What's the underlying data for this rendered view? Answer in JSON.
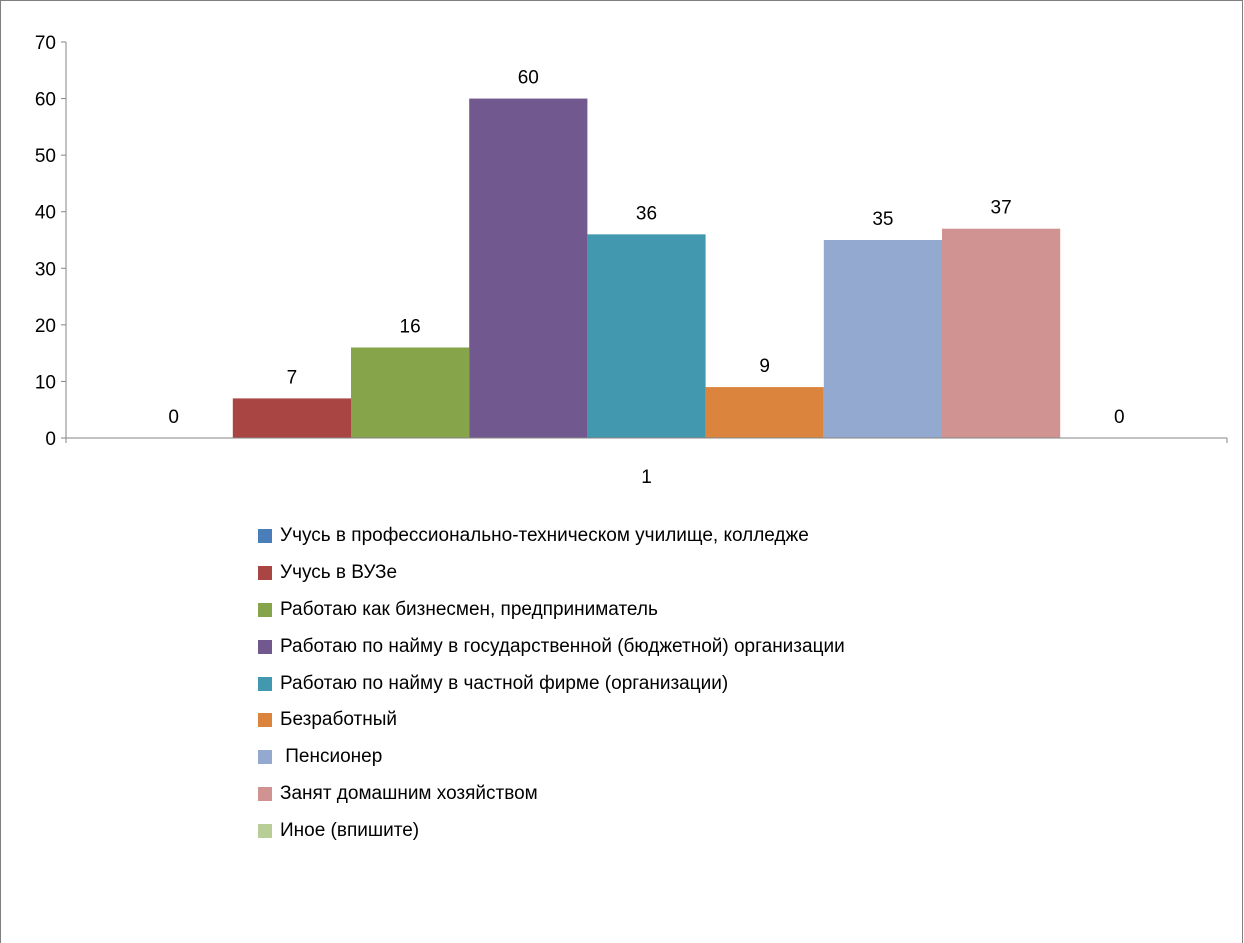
{
  "chart_data": {
    "type": "bar",
    "categories": [
      "1"
    ],
    "ylim": [
      0,
      70
    ],
    "yticks": [
      0,
      10,
      20,
      30,
      40,
      50,
      60,
      70
    ],
    "grid": false,
    "legend_position": "bottom",
    "series": [
      {
        "name": "Учусь в профессионально-техническом училище, колледже",
        "values": [
          0
        ],
        "color": "#4a7ebb",
        "label": "0"
      },
      {
        "name": "Учусь в ВУЗе",
        "values": [
          7
        ],
        "color": "#a94543",
        "label": "7"
      },
      {
        "name": "Работаю как бизнесмен, предприниматель",
        "values": [
          16
        ],
        "color": "#86a44a",
        "label": "16"
      },
      {
        "name": "Работаю по найму в государственной (бюджетной) организации",
        "values": [
          60
        ],
        "color": "#71588f",
        "label": "60"
      },
      {
        "name": "Работаю по найму в частной фирме (организации)",
        "values": [
          36
        ],
        "color": "#4298af",
        "label": "36"
      },
      {
        "name": "Безработный",
        "values": [
          9
        ],
        "color": "#db843d",
        "label": "9"
      },
      {
        "name": " Пенсионер",
        "values": [
          35
        ],
        "color": "#93a9cf",
        "label": "35"
      },
      {
        "name": "Занят домашним хозяйством",
        "values": [
          37
        ],
        "color": "#d19392",
        "label": "37"
      },
      {
        "name": "Иное (впишите)",
        "values": [
          0
        ],
        "color": "#b9cd96",
        "label": "0"
      }
    ]
  }
}
